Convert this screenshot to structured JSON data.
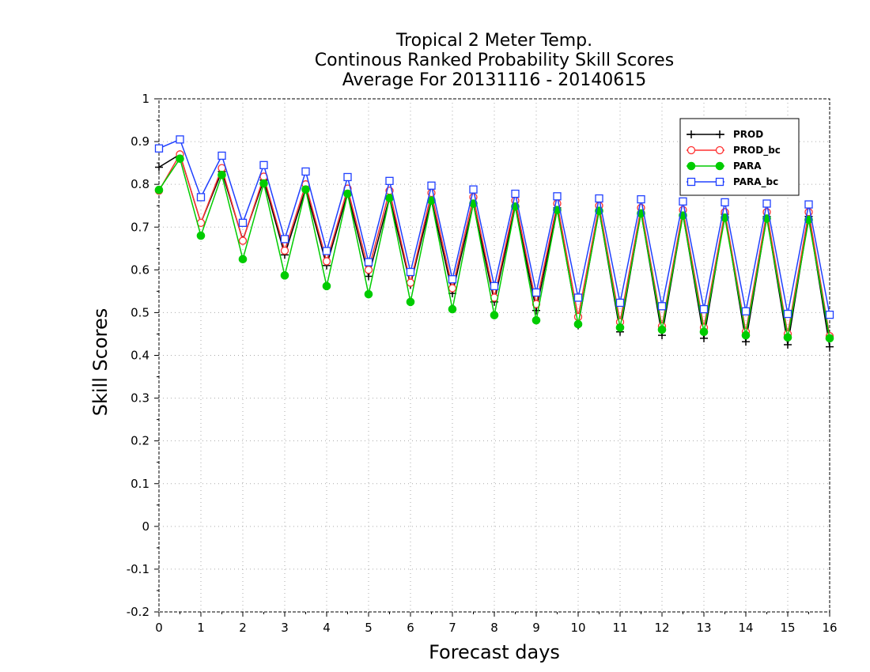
{
  "chart_data": {
    "type": "line",
    "title_lines": [
      "Tropical 2 Meter Temp.",
      "Continous Ranked Probability Skill Scores",
      "Average For 20131116 - 20140615"
    ],
    "xlabel": "Forecast days",
    "ylabel": "Skill Scores",
    "xlim": [
      0,
      16
    ],
    "ylim": [
      -0.2,
      1
    ],
    "xticks": [
      0,
      1,
      2,
      3,
      4,
      5,
      6,
      7,
      8,
      9,
      10,
      11,
      12,
      13,
      14,
      15,
      16
    ],
    "yticks": [
      -0.2,
      -0.1,
      0,
      0.1,
      0.2,
      0.3,
      0.4,
      0.5,
      0.6,
      0.7,
      0.8,
      0.9,
      1
    ],
    "ytick_labels": [
      "-0.2",
      "-0.1",
      "0",
      "0.1",
      "0.2",
      "0.3",
      "0.4",
      "0.5",
      "0.6",
      "0.7",
      "0.8",
      "0.9",
      "1"
    ],
    "grid": true,
    "legend_position": "top-right",
    "x": [
      0,
      0.5,
      1,
      1.5,
      2,
      2.5,
      3,
      3.5,
      4,
      4.5,
      5,
      5.5,
      6,
      6.5,
      7,
      7.5,
      8,
      8.5,
      9,
      9.5,
      10,
      10.5,
      11,
      11.5,
      12,
      12.5,
      13,
      13.5,
      14,
      14.5,
      15,
      15.5,
      16
    ],
    "series": [
      {
        "name": "PROD",
        "color": "#000000",
        "marker": "plus",
        "values": [
          0.84,
          0.87,
          0.71,
          0.83,
          0.67,
          0.81,
          0.635,
          0.79,
          0.61,
          0.78,
          0.585,
          0.77,
          0.565,
          0.765,
          0.545,
          0.755,
          0.525,
          0.75,
          0.505,
          0.745,
          0.47,
          0.74,
          0.455,
          0.735,
          0.447,
          0.73,
          0.44,
          0.73,
          0.432,
          0.725,
          0.425,
          0.725,
          0.42
        ]
      },
      {
        "name": "PROD_bc",
        "color": "#ff3030",
        "marker": "circle",
        "values": [
          0.785,
          0.87,
          0.71,
          0.838,
          0.668,
          0.818,
          0.645,
          0.8,
          0.62,
          0.79,
          0.6,
          0.785,
          0.57,
          0.78,
          0.557,
          0.77,
          0.535,
          0.762,
          0.52,
          0.755,
          0.49,
          0.75,
          0.478,
          0.745,
          0.468,
          0.74,
          0.465,
          0.735,
          0.455,
          0.735,
          0.45,
          0.735,
          0.445
        ]
      },
      {
        "name": "PARA",
        "color": "#00cc00",
        "marker": "dot",
        "values": [
          0.787,
          0.86,
          0.68,
          0.822,
          0.625,
          0.802,
          0.587,
          0.788,
          0.562,
          0.778,
          0.543,
          0.768,
          0.525,
          0.762,
          0.508,
          0.755,
          0.494,
          0.748,
          0.482,
          0.74,
          0.473,
          0.738,
          0.465,
          0.732,
          0.46,
          0.727,
          0.455,
          0.722,
          0.447,
          0.72,
          0.442,
          0.717,
          0.44
        ]
      },
      {
        "name": "PARA_bc",
        "color": "#2040ff",
        "marker": "square",
        "values": [
          0.884,
          0.905,
          0.77,
          0.867,
          0.71,
          0.845,
          0.672,
          0.83,
          0.644,
          0.817,
          0.618,
          0.808,
          0.595,
          0.797,
          0.578,
          0.788,
          0.562,
          0.778,
          0.547,
          0.772,
          0.535,
          0.767,
          0.523,
          0.765,
          0.515,
          0.76,
          0.508,
          0.758,
          0.503,
          0.755,
          0.497,
          0.753,
          0.495
        ]
      }
    ]
  }
}
